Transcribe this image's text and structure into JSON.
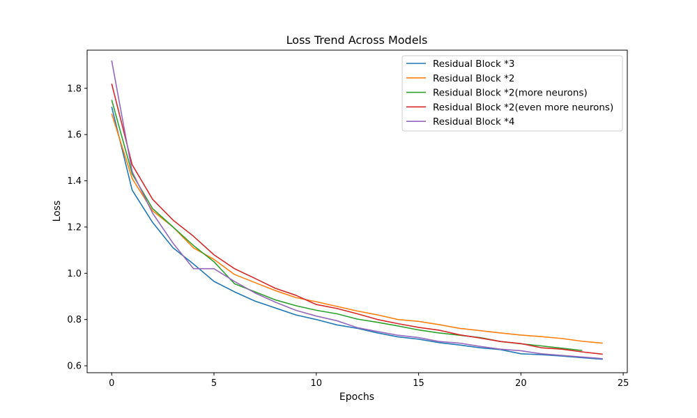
{
  "chart_data": {
    "type": "line",
    "title": "Loss Trend Across Models",
    "xlabel": "Epochs",
    "ylabel": "Loss",
    "xlim": [
      -1.2,
      25.2
    ],
    "ylim": [
      0.57,
      1.965
    ],
    "xticks": [
      0,
      5,
      10,
      15,
      20,
      25
    ],
    "yticks": [
      0.6,
      0.8,
      1.0,
      1.2,
      1.4,
      1.6,
      1.8
    ],
    "xtick_labels": [
      "0",
      "5",
      "10",
      "15",
      "20",
      "25"
    ],
    "ytick_labels": [
      "0.6",
      "0.8",
      "1.0",
      "1.2",
      "1.4",
      "1.6",
      "1.8"
    ],
    "grid": false,
    "legend_position": "top-right",
    "series": [
      {
        "name": "Residual Block *3",
        "color": "#1f77b4",
        "x": [
          0,
          1,
          2,
          3,
          4,
          5,
          6,
          7,
          8,
          9,
          10,
          11,
          12,
          13,
          14,
          15,
          16,
          17,
          18,
          19,
          20,
          21,
          22,
          23,
          24
        ],
        "values": [
          1.72,
          1.36,
          1.22,
          1.11,
          1.04,
          0.965,
          0.92,
          0.88,
          0.85,
          0.82,
          0.8,
          0.777,
          0.762,
          0.742,
          0.725,
          0.715,
          0.7,
          0.69,
          0.678,
          0.67,
          0.652,
          0.648,
          0.642,
          0.635,
          0.628
        ]
      },
      {
        "name": "Residual Block *2",
        "color": "#ff7f0e",
        "x": [
          0,
          1,
          2,
          3,
          4,
          5,
          6,
          7,
          8,
          9,
          10,
          11,
          12,
          13,
          14,
          15,
          16,
          17,
          18,
          19,
          20,
          21,
          22,
          23,
          24
        ],
        "values": [
          1.69,
          1.41,
          1.27,
          1.2,
          1.11,
          1.06,
          0.995,
          0.96,
          0.925,
          0.895,
          0.877,
          0.857,
          0.837,
          0.82,
          0.8,
          0.792,
          0.778,
          0.762,
          0.752,
          0.742,
          0.733,
          0.726,
          0.718,
          0.706,
          0.698
        ]
      },
      {
        "name": "Residual Block *2(more neurons)",
        "color": "#2ca02c",
        "x": [
          0,
          1,
          2,
          3,
          4,
          5,
          6,
          7,
          8,
          9,
          10,
          11,
          12,
          13,
          14,
          15,
          16,
          17,
          18,
          19,
          20,
          21,
          22,
          23
        ],
        "values": [
          1.75,
          1.43,
          1.28,
          1.2,
          1.12,
          1.05,
          0.955,
          0.92,
          0.885,
          0.86,
          0.84,
          0.825,
          0.802,
          0.788,
          0.772,
          0.755,
          0.742,
          0.732,
          0.722,
          0.705,
          0.695,
          0.686,
          0.676,
          0.666
        ]
      },
      {
        "name": "Residual Block *2(even more neurons)",
        "color": "#d62728",
        "x": [
          0,
          1,
          2,
          3,
          4,
          5,
          6,
          7,
          8,
          9,
          10,
          11,
          12,
          13,
          14,
          15,
          16,
          17,
          18,
          19,
          20,
          21,
          22,
          23,
          24
        ],
        "values": [
          1.82,
          1.47,
          1.32,
          1.23,
          1.16,
          1.08,
          1.02,
          0.978,
          0.935,
          0.905,
          0.865,
          0.848,
          0.825,
          0.8,
          0.782,
          0.766,
          0.754,
          0.734,
          0.72,
          0.705,
          0.696,
          0.678,
          0.672,
          0.66,
          0.65
        ]
      },
      {
        "name": "Residual Block *4",
        "color": "#9467bd",
        "x": [
          0,
          1,
          2,
          3,
          4,
          5,
          6,
          7,
          8,
          9,
          10,
          11,
          12,
          13,
          14,
          15,
          16,
          17,
          18,
          19,
          20,
          21,
          22,
          23,
          24
        ],
        "values": [
          1.92,
          1.44,
          1.26,
          1.13,
          1.02,
          1.02,
          0.965,
          0.915,
          0.875,
          0.84,
          0.815,
          0.795,
          0.765,
          0.748,
          0.732,
          0.722,
          0.705,
          0.698,
          0.684,
          0.672,
          0.665,
          0.652,
          0.645,
          0.638,
          0.631
        ]
      }
    ]
  }
}
